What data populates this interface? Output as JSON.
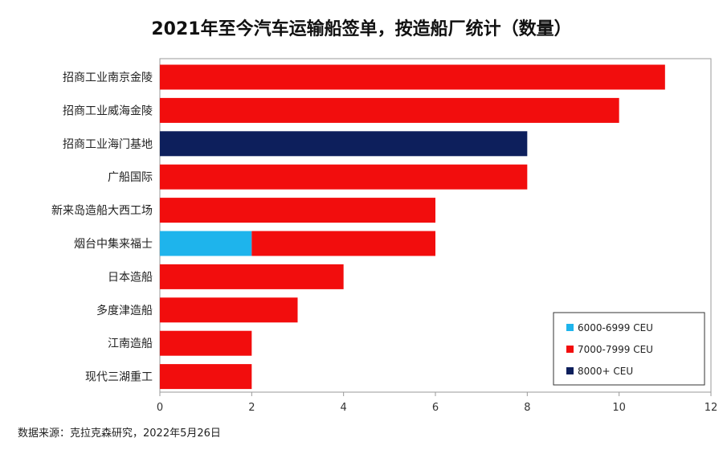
{
  "source": "数据来源：克拉克森研究，2022年5月26日",
  "chart_data": {
    "type": "bar",
    "orientation": "horizontal",
    "stacked": true,
    "title": "2021年至今汽车运输船签单，按造船厂统计（数量）",
    "xlabel": "",
    "ylabel": "",
    "xlim": [
      0,
      12
    ],
    "xticks": [
      0,
      2,
      4,
      6,
      8,
      10,
      12
    ],
    "grid": false,
    "legend_position": "bottom-right",
    "categories": [
      "招商工业南京金陵",
      "招商工业威海金陵",
      "招商工业海门基地",
      "广船国际",
      "新来岛造船大西工场",
      "烟台中集来福士",
      "日本造船",
      "多度津造船",
      "江南造船",
      "现代三湖重工"
    ],
    "series": [
      {
        "name": "6000-6999 CEU",
        "color": "#1eb4ec",
        "values": [
          0,
          0,
          0,
          0,
          0,
          2,
          0,
          0,
          0,
          0
        ]
      },
      {
        "name": "7000-7999 CEU",
        "color": "#f20d0d",
        "values": [
          11,
          10,
          0,
          8,
          6,
          4,
          4,
          3,
          2,
          2
        ]
      },
      {
        "name": "8000+ CEU",
        "color": "#0d1f5c",
        "values": [
          0,
          0,
          8,
          0,
          0,
          0,
          0,
          0,
          0,
          0
        ]
      }
    ]
  }
}
